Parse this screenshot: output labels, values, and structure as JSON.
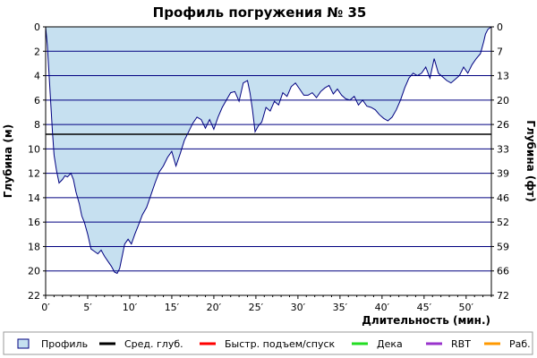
{
  "chart_data": {
    "type": "area",
    "title": "Профиль погружения № 35",
    "xlabel": "Длительность (мин.)",
    "ylabel_left": "Глубина (м)",
    "ylabel_right": "Глубина (фт)",
    "x_range": [
      0,
      53
    ],
    "y_range_m": [
      0,
      22
    ],
    "y_inverted": true,
    "x_ticks": [
      "0′",
      "5′",
      "10′",
      "15′",
      "20′",
      "25′",
      "30′",
      "35′",
      "40′",
      "45′",
      "50′"
    ],
    "y_ticks_left": [
      "0",
      "2",
      "4",
      "6",
      "8",
      "10",
      "12",
      "14",
      "16",
      "18",
      "20",
      "22"
    ],
    "y_ticks_right": [
      "0",
      "7",
      "13",
      "20",
      "26",
      "33",
      "39",
      "46",
      "52",
      "59",
      "66",
      "72"
    ],
    "avg_depth_m": 8.8,
    "series": [
      {
        "name": "Профиль",
        "x": [
          0,
          0.2,
          0.5,
          0.8,
          1,
          1.3,
          1.6,
          2,
          2.3,
          2.6,
          3,
          3.3,
          3.6,
          4,
          4.3,
          4.6,
          5,
          5.4,
          5.8,
          6.2,
          6.6,
          7,
          7.4,
          7.8,
          8.2,
          8.5,
          8.8,
          9.1,
          9.4,
          9.8,
          10.2,
          10.6,
          11,
          11.5,
          12,
          12.5,
          13,
          13.5,
          14,
          14.5,
          15,
          15.5,
          16,
          16.5,
          17,
          17.5,
          18,
          18.5,
          19,
          19.5,
          20,
          20.5,
          21,
          21.5,
          22,
          22.5,
          23,
          23.5,
          24,
          24.3,
          24.6,
          24.9,
          25.3,
          25.7,
          26.2,
          26.7,
          27.2,
          27.7,
          28.2,
          28.7,
          29.2,
          29.7,
          30.2,
          30.7,
          31.2,
          31.7,
          32.2,
          32.7,
          33.2,
          33.7,
          34.2,
          34.7,
          35.2,
          35.7,
          36.2,
          36.7,
          37.2,
          37.7,
          38.2,
          38.7,
          39.2,
          39.7,
          40.2,
          40.7,
          41.2,
          41.7,
          42.2,
          42.7,
          43.2,
          43.7,
          44.2,
          44.7,
          45.2,
          45.7,
          46.2,
          46.7,
          47.2,
          47.7,
          48.2,
          48.7,
          49.2,
          49.7,
          50.2,
          50.7,
          51.2,
          51.7,
          52.1,
          52.3,
          52.6,
          53
        ],
        "depth_m": [
          0,
          1.5,
          5,
          8.5,
          10.5,
          11.8,
          12.8,
          12.5,
          12.2,
          12.3,
          12,
          12.5,
          13.5,
          14.5,
          15.5,
          16,
          17,
          18.2,
          18.4,
          18.6,
          18.3,
          18.8,
          19.2,
          19.6,
          20.1,
          20.2,
          19.8,
          18.8,
          17.8,
          17.4,
          17.8,
          17.0,
          16.3,
          15.4,
          14.8,
          13.8,
          12.8,
          11.9,
          11.4,
          10.7,
          10.2,
          11.4,
          10.4,
          9.3,
          8.6,
          7.9,
          7.4,
          7.6,
          8.3,
          7.6,
          8.4,
          7.4,
          6.6,
          6.0,
          5.4,
          5.3,
          6.1,
          4.6,
          4.4,
          5.4,
          6.8,
          8.6,
          8.1,
          7.8,
          6.6,
          6.9,
          6.1,
          6.4,
          5.4,
          5.7,
          4.9,
          4.6,
          5.1,
          5.6,
          5.6,
          5.4,
          5.8,
          5.3,
          5.0,
          4.8,
          5.5,
          5.1,
          5.6,
          5.9,
          6.0,
          5.7,
          6.4,
          6.0,
          6.5,
          6.6,
          6.8,
          7.2,
          7.5,
          7.7,
          7.4,
          6.8,
          6.0,
          5.0,
          4.2,
          3.8,
          4.0,
          3.8,
          3.3,
          4.2,
          2.6,
          3.8,
          4.1,
          4.4,
          4.6,
          4.3,
          4.0,
          3.3,
          3.8,
          3.1,
          2.6,
          2.2,
          1.2,
          0.6,
          0.2,
          0
        ]
      }
    ],
    "legend": {
      "position": "bottom",
      "items": [
        {
          "label": "Профиль",
          "color": "#c6e0f0",
          "kind": "box"
        },
        {
          "label": "Сред. глуб.",
          "color": "#000000",
          "kind": "line"
        },
        {
          "label": "Быстр. подъем/спуск",
          "color": "#ff0000",
          "kind": "line"
        },
        {
          "label": "Дека",
          "color": "#22dd22",
          "kind": "line"
        },
        {
          "label": "RBT",
          "color": "#9933cc",
          "kind": "line"
        },
        {
          "label": "Раб.",
          "color": "#ff9900",
          "kind": "line"
        }
      ]
    },
    "colors": {
      "fill": "#c6e0f0",
      "line": "#000080",
      "grid": "#000080"
    }
  }
}
